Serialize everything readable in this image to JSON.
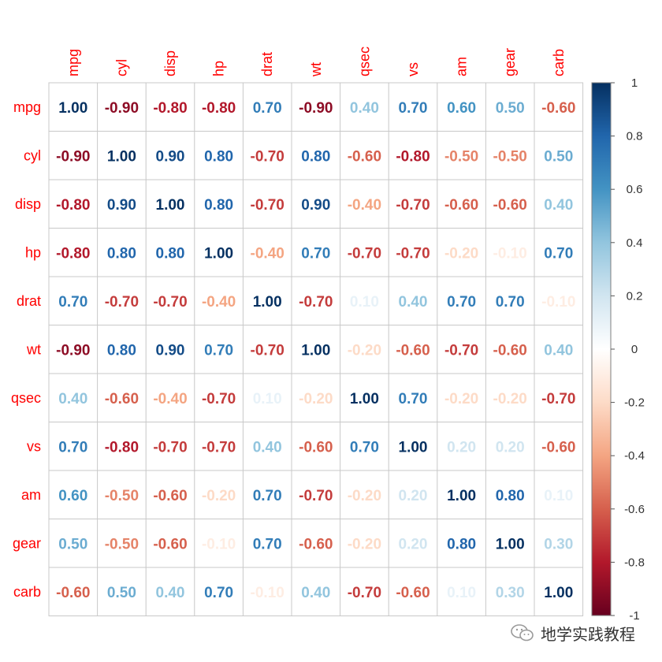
{
  "chart_data": {
    "type": "heatmap",
    "title": "",
    "xlabel": "",
    "ylabel": "",
    "variables": [
      "mpg",
      "cyl",
      "disp",
      "hp",
      "drat",
      "wt",
      "qsec",
      "vs",
      "am",
      "gear",
      "carb"
    ],
    "matrix": [
      [
        1.0,
        -0.9,
        -0.8,
        -0.8,
        0.7,
        -0.9,
        0.4,
        0.7,
        0.6,
        0.5,
        -0.6
      ],
      [
        -0.9,
        1.0,
        0.9,
        0.8,
        -0.7,
        0.8,
        -0.6,
        -0.8,
        -0.5,
        -0.5,
        0.5
      ],
      [
        -0.8,
        0.9,
        1.0,
        0.8,
        -0.7,
        0.9,
        -0.4,
        -0.7,
        -0.6,
        -0.6,
        0.4
      ],
      [
        -0.8,
        0.8,
        0.8,
        1.0,
        -0.4,
        0.7,
        -0.7,
        -0.7,
        -0.2,
        -0.1,
        0.7
      ],
      [
        0.7,
        -0.7,
        -0.7,
        -0.4,
        1.0,
        -0.7,
        0.1,
        0.4,
        0.7,
        0.7,
        -0.1
      ],
      [
        -0.9,
        0.8,
        0.9,
        0.7,
        -0.7,
        1.0,
        -0.2,
        -0.6,
        -0.7,
        -0.6,
        0.4
      ],
      [
        0.4,
        -0.6,
        -0.4,
        -0.7,
        0.1,
        -0.2,
        1.0,
        0.7,
        -0.2,
        -0.2,
        -0.7
      ],
      [
        0.7,
        -0.8,
        -0.7,
        -0.7,
        0.4,
        -0.6,
        0.7,
        1.0,
        0.2,
        0.2,
        -0.6
      ],
      [
        0.6,
        -0.5,
        -0.6,
        -0.2,
        0.7,
        -0.7,
        -0.2,
        0.2,
        1.0,
        0.8,
        0.1
      ],
      [
        0.5,
        -0.5,
        -0.6,
        -0.1,
        0.7,
        -0.6,
        -0.2,
        0.2,
        0.8,
        1.0,
        0.3
      ],
      [
        -0.6,
        0.5,
        0.4,
        0.7,
        -0.1,
        0.4,
        -0.7,
        -0.6,
        0.1,
        0.3,
        1.0
      ]
    ],
    "value_format": "two decimals",
    "color_range": [
      -1,
      1
    ],
    "colorbar_ticks": [
      "1",
      "0.8",
      "0.6",
      "0.4",
      "0.2",
      "0",
      "-0.2",
      "-0.4",
      "-0.6",
      "-0.8",
      "-1"
    ],
    "colorbar_tick_values": [
      1,
      0.8,
      0.6,
      0.4,
      0.2,
      0,
      -0.2,
      -0.4,
      -0.6,
      -0.8,
      -1
    ],
    "colors": {
      "label": "#ff0000",
      "grid": "#c8c8c8",
      "scale": [
        "#67001f",
        "#b2182b",
        "#d6604d",
        "#f4a582",
        "#fddbc7",
        "#ffffff",
        "#d1e5f0",
        "#92c5de",
        "#4393c3",
        "#2166ac",
        "#053061"
      ]
    },
    "legend_position": "right",
    "grid": true
  },
  "watermark": {
    "text": "地学实践教程",
    "icon": "wechat-icon"
  }
}
